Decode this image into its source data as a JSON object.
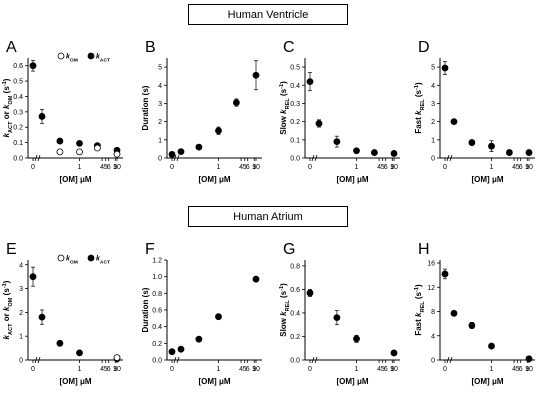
{
  "sections": [
    {
      "title": "Human Ventricle"
    },
    {
      "title": "Human Atrium"
    }
  ],
  "xlabel_parts": {
    "prefix": "[OM] ",
    "unit": "μM"
  },
  "x_ticks": [
    "0",
    "1",
    "4",
    "5",
    "6",
    "9",
    "10"
  ],
  "chart_data": [
    {
      "type": "scatter",
      "letter": "A",
      "section": "Human Ventricle",
      "ylabel_parts": [
        [
          "k",
          "i"
        ],
        [
          "ACT",
          "s"
        ],
        [
          " or ",
          ""
        ],
        [
          "k",
          "i"
        ],
        [
          "OM",
          "s"
        ],
        [
          " (s",
          ""
        ],
        [
          "-1",
          "p"
        ],
        [
          ")",
          ""
        ]
      ],
      "xlabel": "[OM] μM",
      "yticks": [
        "0.0",
        "0.1",
        "0.2",
        "0.3",
        "0.4",
        "0.5",
        "0.6"
      ],
      "ylim": [
        0,
        0.65
      ],
      "x_ticks": [
        "0",
        "1",
        "4",
        "5",
        "6",
        "9",
        "10"
      ],
      "legend": [
        {
          "label_parts": [
            [
              "k",
              "i"
            ],
            [
              "OM",
              "s"
            ]
          ],
          "marker": "open"
        },
        {
          "label_parts": [
            [
              "k",
              "i"
            ],
            [
              "ACT",
              "s"
            ]
          ],
          "marker": "filled"
        }
      ],
      "legend_position": "top-right",
      "series": [
        {
          "name": "kACT",
          "marker": "filled",
          "x": [
            0,
            0.1,
            0.3,
            1,
            3,
            10
          ],
          "y": [
            0.6,
            0.27,
            0.11,
            0.095,
            0.08,
            0.05
          ],
          "err": [
            0.035,
            0.045,
            0.01,
            0.008,
            0.01,
            0.008
          ]
        },
        {
          "name": "kOM",
          "marker": "open",
          "x": [
            0.3,
            1,
            3,
            10
          ],
          "y": [
            0.04,
            0.04,
            0.065,
            0.025
          ],
          "err": [
            0,
            0,
            0,
            0
          ]
        }
      ]
    },
    {
      "type": "scatter",
      "letter": "B",
      "section": "Human Ventricle",
      "ylabel_parts": [
        [
          "Duration (s)",
          ""
        ]
      ],
      "xlabel": "[OM] μM",
      "yticks": [
        "0",
        "1",
        "2",
        "3",
        "4",
        "5"
      ],
      "ylim": [
        0,
        5.5
      ],
      "x_ticks": [
        "0",
        "1",
        "4",
        "5",
        "6",
        "9",
        "10"
      ],
      "series": [
        {
          "marker": "filled",
          "x": [
            0,
            0.1,
            0.3,
            1,
            3,
            10
          ],
          "y": [
            0.2,
            0.35,
            0.6,
            1.5,
            3.05,
            4.55
          ],
          "err": [
            0.05,
            0.05,
            0.05,
            0.2,
            0.2,
            0.8
          ]
        }
      ]
    },
    {
      "type": "scatter",
      "letter": "C",
      "section": "Human Ventricle",
      "ylabel_parts": [
        [
          "Slow ",
          ""
        ],
        [
          "k",
          "i"
        ],
        [
          "REL",
          "s"
        ],
        [
          " (s",
          ""
        ],
        [
          "-1",
          "p"
        ],
        [
          ")",
          ""
        ]
      ],
      "xlabel": "[OM] μM",
      "yticks": [
        "0.0",
        "0.1",
        "0.2",
        "0.3",
        "0.4",
        "0.5"
      ],
      "ylim": [
        0,
        0.55
      ],
      "x_ticks": [
        "0",
        "1",
        "4",
        "5",
        "6",
        "9",
        "10"
      ],
      "series": [
        {
          "marker": "filled",
          "x": [
            0,
            0.1,
            0.3,
            1,
            3,
            10
          ],
          "y": [
            0.42,
            0.19,
            0.09,
            0.04,
            0.03,
            0.025
          ],
          "err": [
            0.05,
            0.02,
            0.03,
            0.008,
            0.005,
            0.005
          ]
        }
      ]
    },
    {
      "type": "scatter",
      "letter": "D",
      "section": "Human Ventricle",
      "ylabel_parts": [
        [
          "Fast ",
          ""
        ],
        [
          "k",
          "i"
        ],
        [
          "REL",
          "s"
        ],
        [
          " (s",
          ""
        ],
        [
          "-1",
          "p"
        ],
        [
          ")",
          ""
        ]
      ],
      "xlabel": "[OM] μM",
      "yticks": [
        "0",
        "1",
        "2",
        "3",
        "4",
        "5"
      ],
      "ylim": [
        0,
        5.5
      ],
      "x_ticks": [
        "0",
        "1",
        "4",
        "5",
        "6",
        "9",
        "10"
      ],
      "series": [
        {
          "marker": "filled",
          "x": [
            0,
            0.1,
            0.3,
            1,
            3,
            10
          ],
          "y": [
            4.95,
            2.0,
            0.85,
            0.65,
            0.3,
            0.3
          ],
          "err": [
            0.35,
            0.1,
            0.15,
            0.3,
            0.05,
            0.05
          ]
        }
      ]
    },
    {
      "type": "scatter",
      "letter": "E",
      "section": "Human Atrium",
      "ylabel_parts": [
        [
          "k",
          "i"
        ],
        [
          "ACT",
          "s"
        ],
        [
          " or ",
          ""
        ],
        [
          "k",
          "i"
        ],
        [
          "OM",
          "s"
        ],
        [
          " (s",
          ""
        ],
        [
          "-1",
          "p"
        ],
        [
          ")",
          ""
        ]
      ],
      "xlabel": "[OM] μM",
      "yticks": [
        "0",
        "1",
        "2",
        "3",
        "4"
      ],
      "ylim": [
        0,
        4.2
      ],
      "x_ticks": [
        "0",
        "1",
        "4",
        "5",
        "6",
        "9",
        "10"
      ],
      "legend": [
        {
          "label_parts": [
            [
              "k",
              "i"
            ],
            [
              "OM",
              "s"
            ]
          ],
          "marker": "open"
        },
        {
          "label_parts": [
            [
              "k",
              "i"
            ],
            [
              "ACT",
              "s"
            ]
          ],
          "marker": "filled"
        }
      ],
      "legend_position": "top-right",
      "series": [
        {
          "name": "kACT",
          "marker": "filled",
          "x": [
            0,
            0.1,
            0.3,
            1,
            10
          ],
          "y": [
            3.5,
            1.8,
            0.7,
            0.3,
            0.05
          ],
          "err": [
            0.4,
            0.3,
            0.05,
            0.05,
            0.02
          ]
        },
        {
          "name": "kOM",
          "marker": "open",
          "x": [
            10
          ],
          "y": [
            0.1
          ],
          "err": [
            0.05
          ]
        }
      ]
    },
    {
      "type": "scatter",
      "letter": "F",
      "section": "Human Atrium",
      "ylabel_parts": [
        [
          "Duration (s)",
          ""
        ]
      ],
      "xlabel": "[OM] μM",
      "yticks": [
        "0.0",
        "0.2",
        "0.4",
        "0.6",
        "0.8",
        "1.0",
        "1.2"
      ],
      "ylim": [
        0,
        1.2
      ],
      "x_ticks": [
        "0",
        "1",
        "4",
        "5",
        "6",
        "9",
        "10"
      ],
      "series": [
        {
          "marker": "filled",
          "x": [
            0,
            0.1,
            0.3,
            1,
            10
          ],
          "y": [
            0.1,
            0.13,
            0.25,
            0.52,
            0.97
          ],
          "err": [
            0.01,
            0.01,
            0.02,
            0.03,
            0.03
          ]
        }
      ]
    },
    {
      "type": "scatter",
      "letter": "G",
      "section": "Human Atrium",
      "ylabel_parts": [
        [
          "Slow ",
          ""
        ],
        [
          "k",
          "i"
        ],
        [
          "REL",
          "s"
        ],
        [
          " (s",
          ""
        ],
        [
          "-1",
          "p"
        ],
        [
          ")",
          ""
        ]
      ],
      "xlabel": "[OM] μM",
      "yticks": [
        "0.0",
        "0.2",
        "0.4",
        "0.6",
        "0.8"
      ],
      "ylim": [
        0,
        0.85
      ],
      "x_ticks": [
        "0",
        "1",
        "4",
        "5",
        "6",
        "9",
        "10"
      ],
      "series": [
        {
          "marker": "filled",
          "x": [
            0,
            0.3,
            1,
            10
          ],
          "y": [
            0.57,
            0.36,
            0.18,
            0.06
          ],
          "err": [
            0.03,
            0.06,
            0.03,
            0.005
          ]
        }
      ]
    },
    {
      "type": "scatter",
      "letter": "H",
      "section": "Human Atrium",
      "ylabel_parts": [
        [
          "Fast ",
          ""
        ],
        [
          "k",
          "i"
        ],
        [
          "REL",
          "s"
        ],
        [
          " (s",
          ""
        ],
        [
          "-1",
          "p"
        ],
        [
          ")",
          ""
        ]
      ],
      "xlabel": "[OM] μM",
      "yticks": [
        "0",
        "4",
        "8",
        "12",
        "16"
      ],
      "ylim": [
        0,
        16.5
      ],
      "x_ticks": [
        "0",
        "1",
        "4",
        "5",
        "6",
        "9",
        "10"
      ],
      "series": [
        {
          "marker": "filled",
          "x": [
            0,
            0.1,
            0.3,
            1,
            10
          ],
          "y": [
            14.2,
            7.7,
            5.7,
            2.3,
            0.2
          ],
          "err": [
            0.8,
            0.1,
            0.5,
            0.1,
            0.05
          ]
        }
      ]
    }
  ]
}
